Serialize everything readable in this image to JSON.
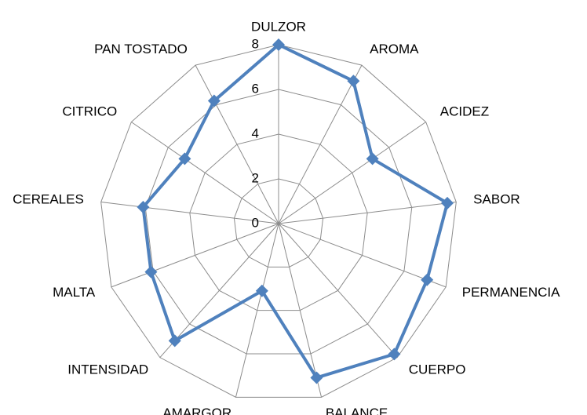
{
  "chart_data": {
    "type": "radar",
    "categories": [
      "DULZOR",
      "AROMA",
      "ACIDEZ",
      "SABOR",
      "PERMANENCIA",
      "CUERPO",
      "BALANCE",
      "AMARGOR",
      "INTENSIDAD",
      "MALTA",
      "CEREALES",
      "CITRICO",
      "PAN TOSTADO"
    ],
    "values": [
      8,
      7.2,
      5.1,
      7.6,
      7.1,
      7.8,
      7.1,
      3.1,
      7,
      6.1,
      6.1,
      5.1,
      6.2
    ],
    "color": "#4f81bd",
    "ylim": [
      0,
      8
    ],
    "yticks": [
      0,
      2,
      4,
      6,
      8
    ],
    "grid": true
  }
}
